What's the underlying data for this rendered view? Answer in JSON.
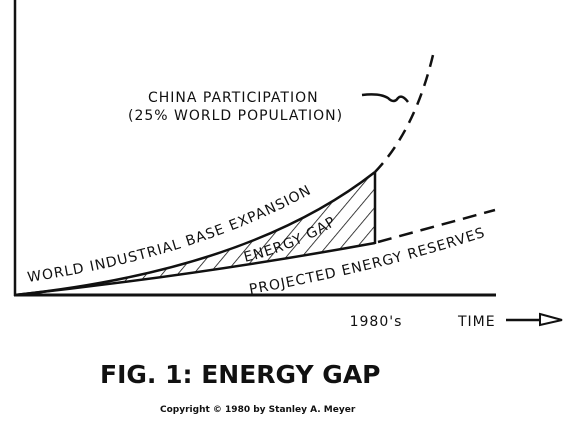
{
  "labels": {
    "china_line1": "CHINA PARTICIPATION",
    "china_line2": "(25% WORLD POPULATION)",
    "expansion": "WORLD INDUSTRIAL BASE EXPANSION",
    "gap": "ENERGY GAP",
    "reserves": "PROJECTED ENERGY RESERVES"
  },
  "axis": {
    "marker": "1980's",
    "label": "TIME"
  },
  "caption": {
    "title": "FIG. 1: ENERGY GAP",
    "copyright": "Copyright © 1980 by Stanley A. Meyer"
  }
}
